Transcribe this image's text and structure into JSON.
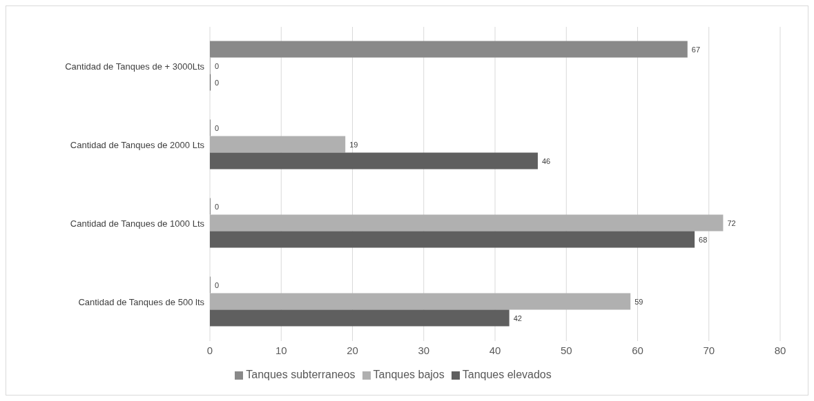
{
  "chart_data": {
    "type": "bar",
    "orientation": "horizontal",
    "categories": [
      "Cantidad de Tanques de + 3000Lts",
      "Cantidad de Tanques de 2000 Lts",
      "Cantidad de Tanques de 1000 Lts",
      "Cantidad de Tanques de  500 lts"
    ],
    "series": [
      {
        "name": "Tanques subterraneos",
        "color": "#898989",
        "values": [
          67,
          0,
          0,
          0
        ]
      },
      {
        "name": "Tanques bajos",
        "color": "#b0b0b0",
        "values": [
          0,
          19,
          72,
          59
        ]
      },
      {
        "name": "Tanques elevados",
        "color": "#5f5f5f",
        "values": [
          0,
          46,
          68,
          42
        ]
      }
    ],
    "xlim": [
      0,
      80
    ],
    "xticks": [
      0,
      10,
      20,
      30,
      40,
      50,
      60,
      70,
      80
    ],
    "grid": "x",
    "legend": "bottom",
    "data_labels": true
  }
}
